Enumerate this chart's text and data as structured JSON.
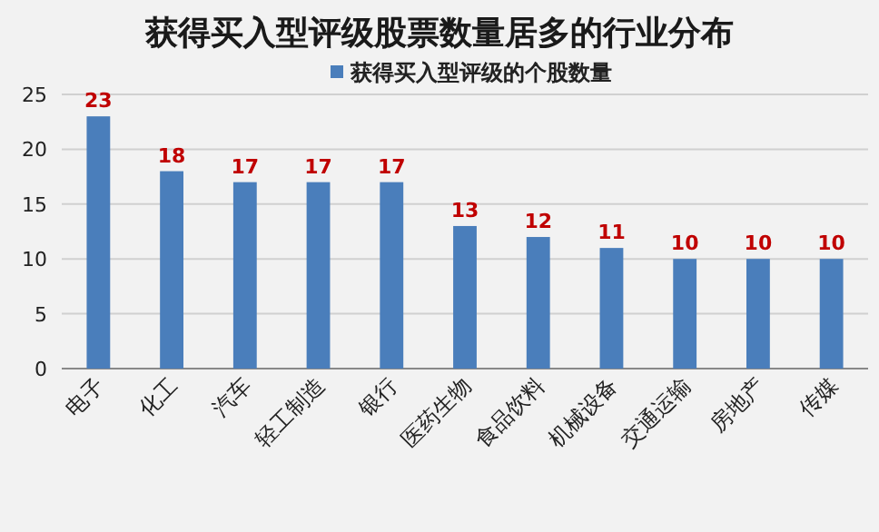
{
  "chart_data": {
    "type": "bar",
    "title": "获得买入型评级股票数量居多的行业分布",
    "categories": [
      "电子",
      "化工",
      "汽车",
      "轻工制造",
      "银行",
      "医药生物",
      "食品饮料",
      "机械设备",
      "交通运输",
      "房地产",
      "传媒"
    ],
    "series": [
      {
        "name": "获得买入型评级的个股数量",
        "color": "#4a7ebb",
        "values": [
          23,
          18,
          17,
          17,
          17,
          13,
          12,
          11,
          10,
          10,
          10
        ]
      }
    ],
    "ylim": [
      0,
      25
    ],
    "yticks": [
      0,
      5,
      10,
      15,
      20,
      25
    ],
    "grid": "y",
    "legend": "top",
    "data_labels": true
  }
}
